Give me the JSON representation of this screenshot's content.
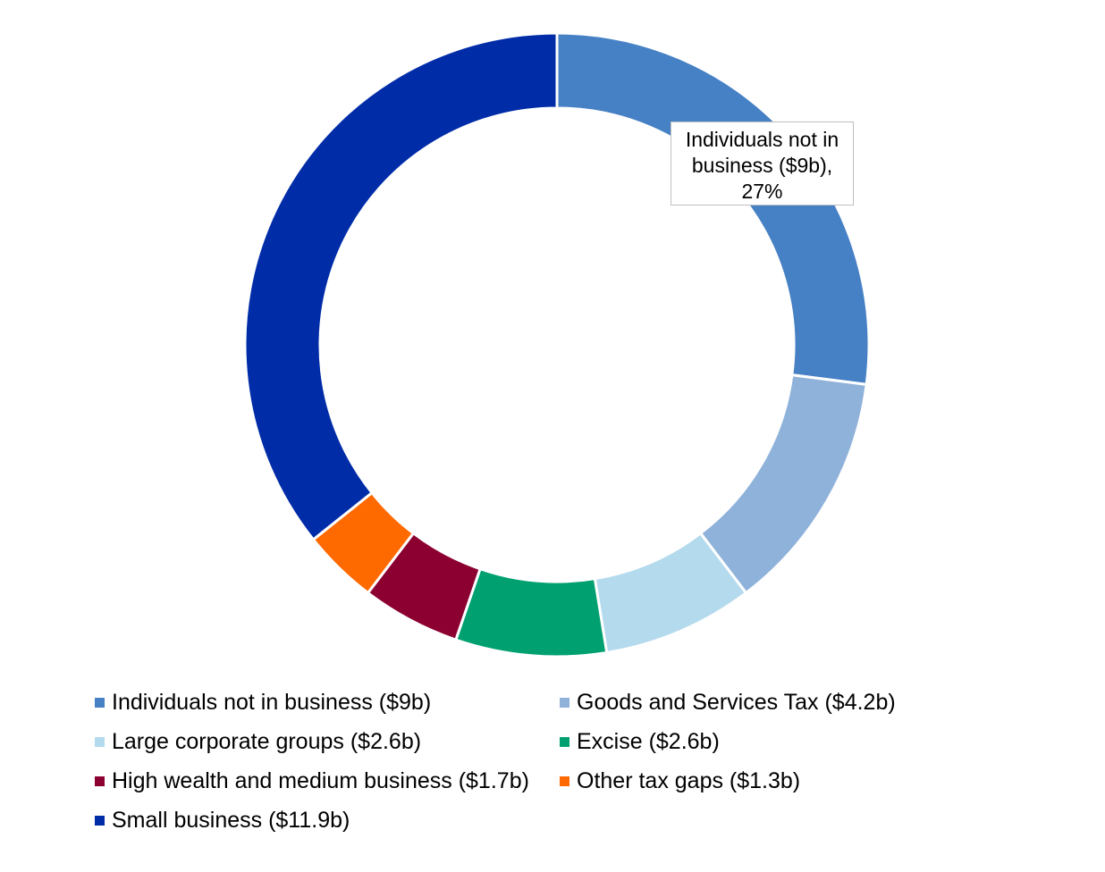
{
  "chart_data": {
    "type": "pie",
    "variant": "donut",
    "title": "",
    "slices": [
      {
        "name": "Individuals not in business ($9b)",
        "value": 9.0,
        "color": "#4680c5"
      },
      {
        "name": "Goods and Services Tax ($4.2b)",
        "value": 4.2,
        "color": "#8fb2da"
      },
      {
        "name": "Large corporate groups ($2.6b)",
        "value": 2.6,
        "color": "#b4daee"
      },
      {
        "name": "Excise ($2.6b)",
        "value": 2.6,
        "color": "#00a070"
      },
      {
        "name": "High wealth and medium business ($1.7b)",
        "value": 1.7,
        "color": "#8b0030"
      },
      {
        "name": "Other tax gaps ($1.3b)",
        "value": 1.3,
        "color": "#ff6a00"
      },
      {
        "name": "Small business ($11.9b)",
        "value": 11.9,
        "color": "#002ca8"
      }
    ],
    "annotation": {
      "line1": "Individuals not in",
      "line2": "business ($9b),",
      "line3": "27%"
    },
    "legend_position": "bottom"
  }
}
